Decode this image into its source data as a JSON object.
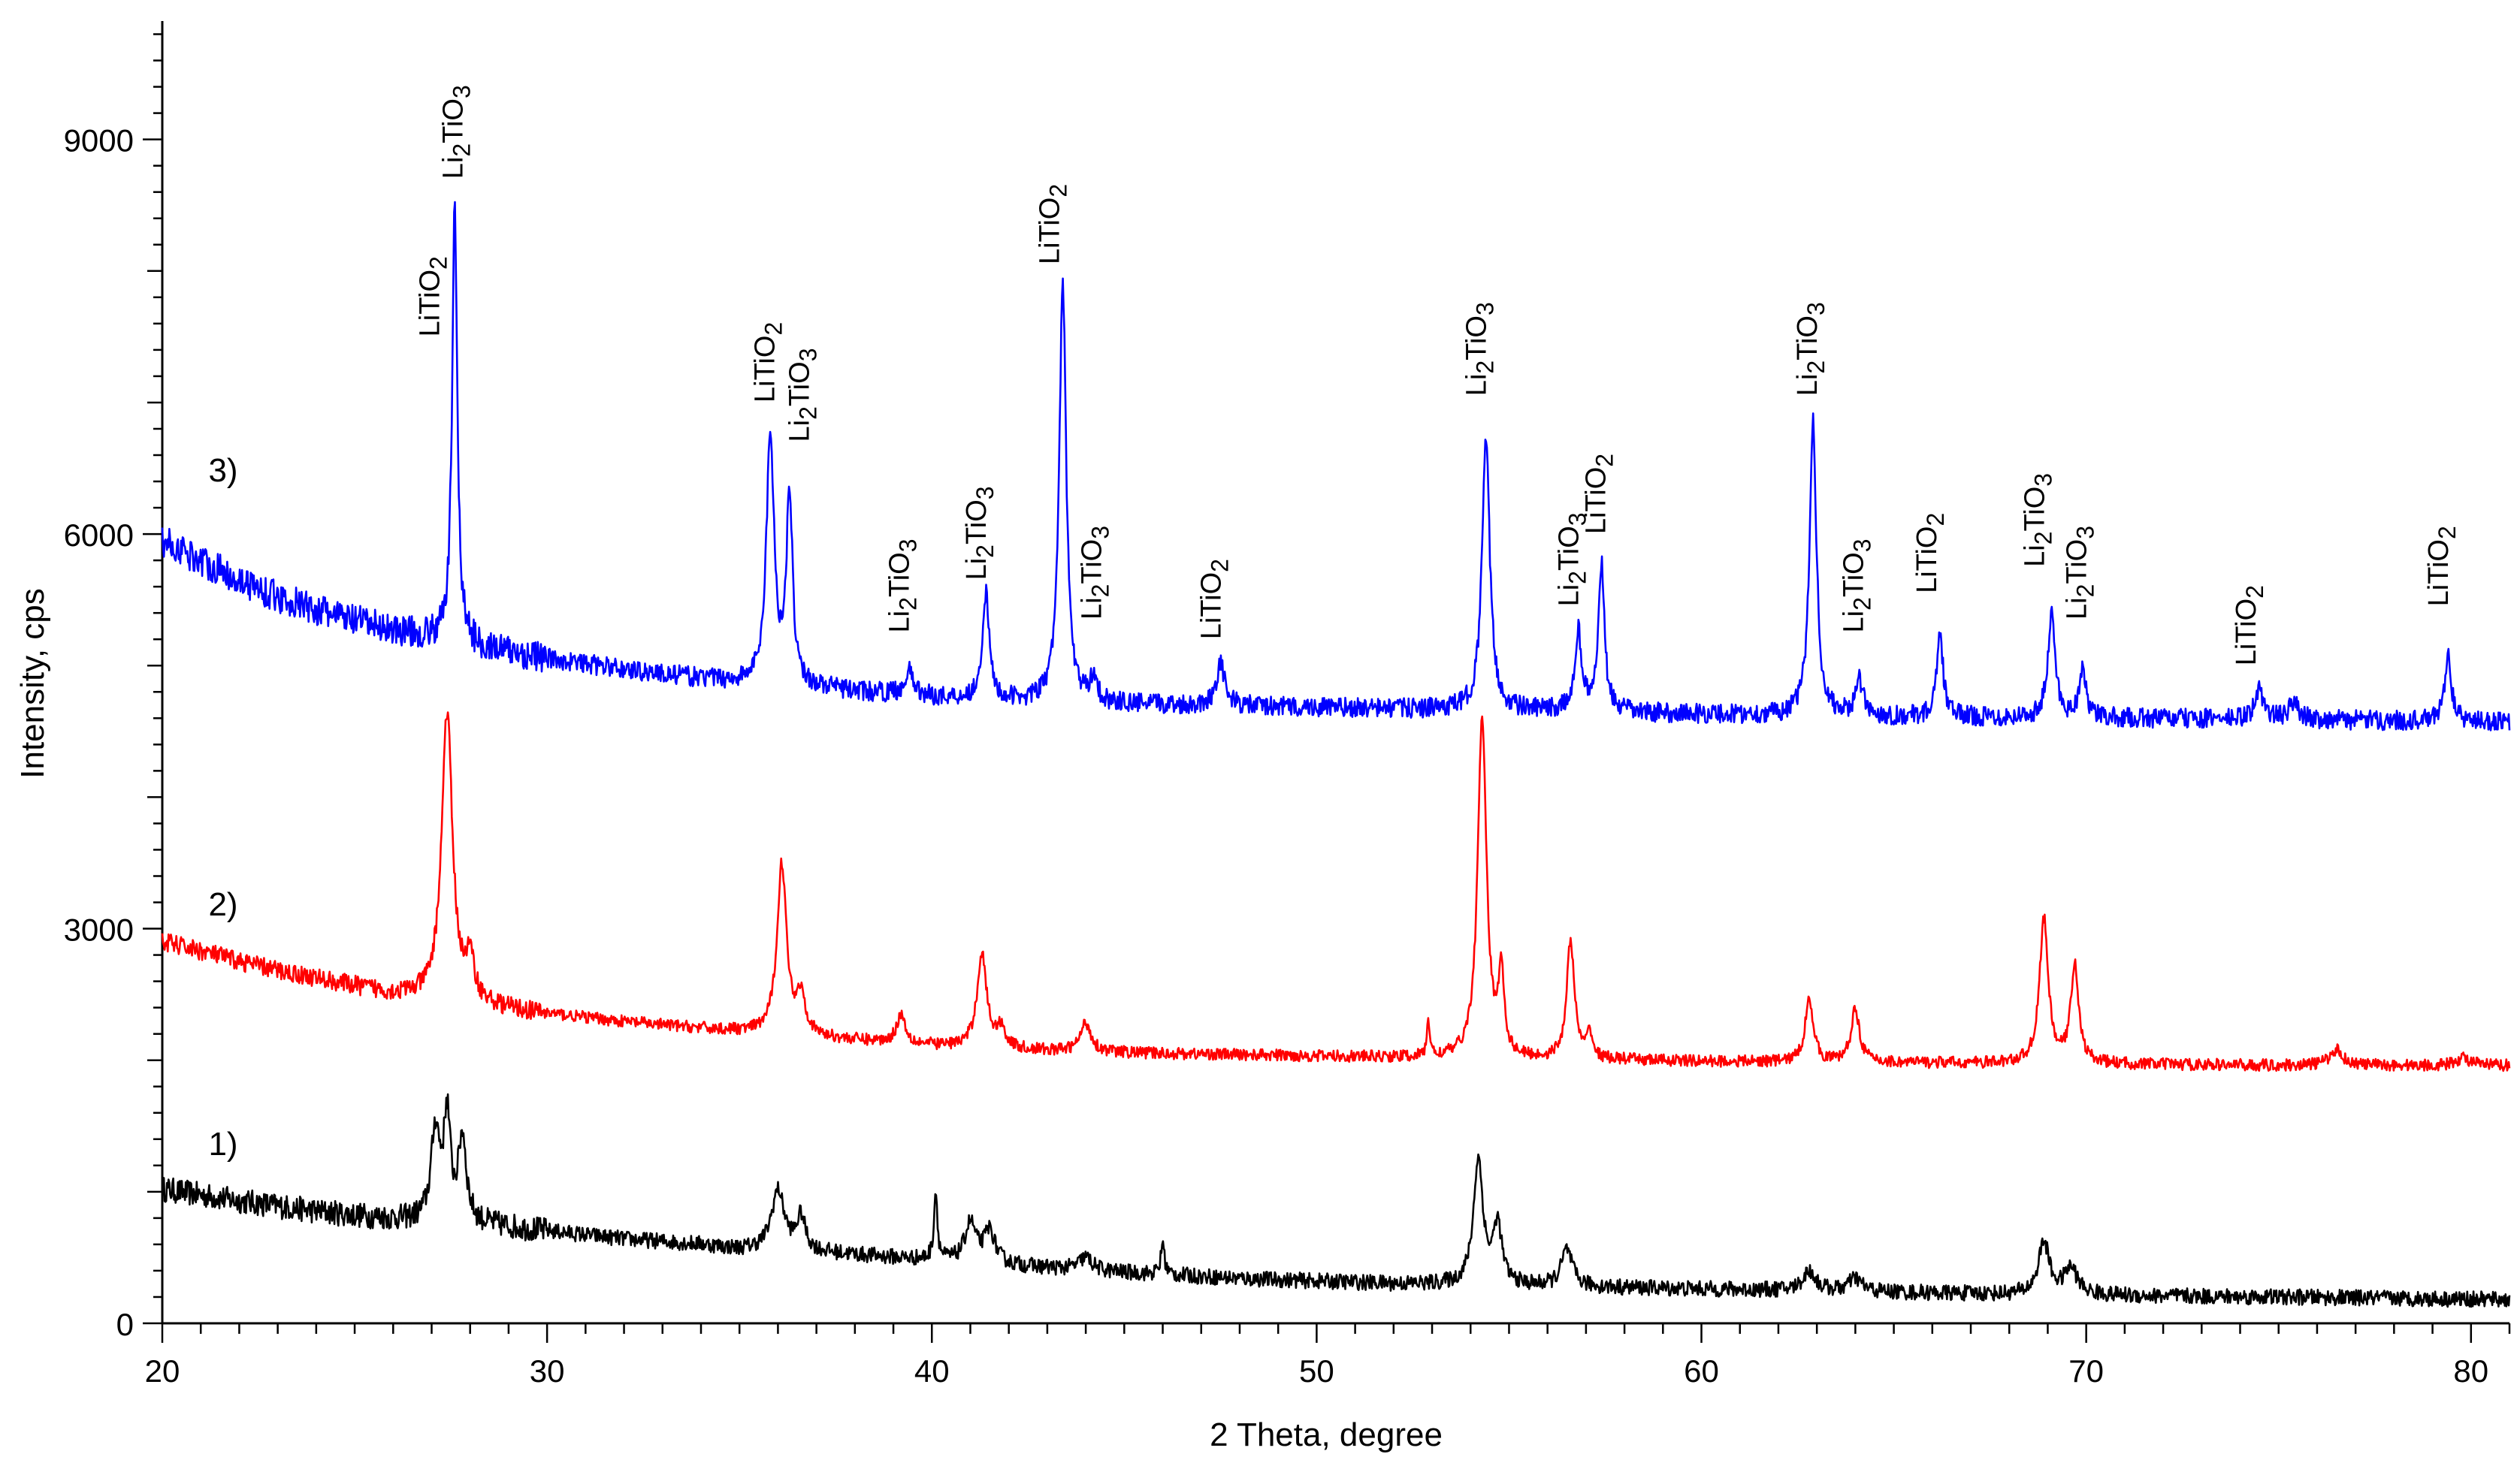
{
  "chart_data": {
    "type": "line",
    "xlabel": "2  Theta, degree",
    "ylabel": "Intensity, cps",
    "xlim": [
      20,
      81
    ],
    "ylim": [
      0,
      9900
    ],
    "xticks": [
      "20",
      "30",
      "40",
      "50",
      "60",
      "70",
      "80"
    ],
    "yticks": [
      "0",
      "3000",
      "6000",
      "9000"
    ],
    "grid": false,
    "legend": "none",
    "series": [
      {
        "name": "1)",
        "color": "#000000",
        "label_pos": [
          21.2,
          1280
        ],
        "baseline": [
          [
            20,
            1020
          ],
          [
            22,
            930
          ],
          [
            24,
            850
          ],
          [
            26,
            790
          ],
          [
            27,
            770
          ],
          [
            28,
            760
          ],
          [
            30,
            700
          ],
          [
            32,
            640
          ],
          [
            34,
            600
          ],
          [
            35,
            560
          ],
          [
            36,
            560
          ],
          [
            38,
            520
          ],
          [
            40,
            480
          ],
          [
            42,
            440
          ],
          [
            44,
            400
          ],
          [
            46,
            370
          ],
          [
            48,
            340
          ],
          [
            50,
            320
          ],
          [
            52,
            300
          ],
          [
            54,
            290
          ],
          [
            56,
            280
          ],
          [
            58,
            270
          ],
          [
            60,
            260
          ],
          [
            62,
            250
          ],
          [
            64,
            240
          ],
          [
            66,
            230
          ],
          [
            68,
            220
          ],
          [
            70,
            215
          ],
          [
            72,
            205
          ],
          [
            75,
            200
          ],
          [
            81,
            180
          ]
        ],
        "peaks": [
          [
            27.1,
            700,
            0.2
          ],
          [
            27.4,
            780,
            0.15
          ],
          [
            27.8,
            650,
            0.18
          ],
          [
            36.0,
            450,
            0.3
          ],
          [
            36.6,
            250,
            0.2
          ],
          [
            40.1,
            520,
            0.08
          ],
          [
            41.0,
            300,
            0.25
          ],
          [
            41.5,
            250,
            0.25
          ],
          [
            44.0,
            100,
            0.3
          ],
          [
            46.0,
            250,
            0.08
          ],
          [
            54.2,
            950,
            0.22
          ],
          [
            54.7,
            450,
            0.2
          ],
          [
            56.5,
            280,
            0.25
          ],
          [
            62.8,
            150,
            0.3
          ],
          [
            64.0,
            100,
            0.3
          ],
          [
            68.9,
            400,
            0.25
          ],
          [
            69.6,
            200,
            0.3
          ]
        ],
        "noise": 60
      },
      {
        "name": "2)",
        "color": "#ff0000",
        "label_pos": [
          21.2,
          3100
        ],
        "baseline": [
          [
            20,
            2900
          ],
          [
            21,
            2830
          ],
          [
            22,
            2750
          ],
          [
            23,
            2680
          ],
          [
            24,
            2620
          ],
          [
            25,
            2560
          ],
          [
            26,
            2500
          ],
          [
            27,
            2460
          ],
          [
            28,
            2420
          ],
          [
            30,
            2350
          ],
          [
            32,
            2290
          ],
          [
            34,
            2240
          ],
          [
            36,
            2190
          ],
          [
            38,
            2150
          ],
          [
            40,
            2110
          ],
          [
            42,
            2080
          ],
          [
            44,
            2060
          ],
          [
            46,
            2050
          ],
          [
            48,
            2040
          ],
          [
            50,
            2030
          ],
          [
            52,
            2020
          ],
          [
            54,
            2010
          ],
          [
            56,
            2000
          ],
          [
            58,
            2000
          ],
          [
            60,
            1990
          ],
          [
            65,
            1980
          ],
          [
            70,
            1970
          ],
          [
            75,
            1960
          ],
          [
            81,
            1960
          ]
        ],
        "peaks": [
          [
            27.4,
            2200,
            0.25
          ],
          [
            28.0,
            300,
            0.2
          ],
          [
            36.1,
            1300,
            0.22
          ],
          [
            36.6,
            300,
            0.2
          ],
          [
            39.2,
            220,
            0.2
          ],
          [
            41.3,
            720,
            0.22
          ],
          [
            41.8,
            150,
            0.2
          ],
          [
            44.0,
            220,
            0.25
          ],
          [
            52.9,
            300,
            0.06
          ],
          [
            54.3,
            2600,
            0.2
          ],
          [
            54.8,
            650,
            0.12
          ],
          [
            56.6,
            900,
            0.18
          ],
          [
            57.1,
            200,
            0.12
          ],
          [
            62.8,
            500,
            0.18
          ],
          [
            64.0,
            400,
            0.2
          ],
          [
            68.9,
            1100,
            0.2
          ],
          [
            69.7,
            750,
            0.18
          ],
          [
            76.5,
            120,
            0.3
          ],
          [
            79.8,
            60,
            0.3
          ]
        ],
        "noise": 45
      },
      {
        "name": "3)",
        "color": "#0000ff",
        "label_pos": [
          21.2,
          6400
        ],
        "baseline": [
          [
            20,
            5950
          ],
          [
            21,
            5800
          ],
          [
            22,
            5650
          ],
          [
            23,
            5520
          ],
          [
            24,
            5420
          ],
          [
            25,
            5340
          ],
          [
            26,
            5270
          ],
          [
            27,
            5210
          ],
          [
            28,
            5150
          ],
          [
            30,
            5050
          ],
          [
            32,
            4970
          ],
          [
            34,
            4900
          ],
          [
            35,
            4870
          ],
          [
            36,
            4850
          ],
          [
            37,
            4830
          ],
          [
            38,
            4800
          ],
          [
            40,
            4760
          ],
          [
            42,
            4730
          ],
          [
            44,
            4710
          ],
          [
            46,
            4700
          ],
          [
            48,
            4690
          ],
          [
            50,
            4680
          ],
          [
            52,
            4670
          ],
          [
            54,
            4660
          ],
          [
            56,
            4650
          ],
          [
            58,
            4640
          ],
          [
            60,
            4630
          ],
          [
            62,
            4620
          ],
          [
            65,
            4610
          ],
          [
            70,
            4600
          ],
          [
            75,
            4590
          ],
          [
            81,
            4570
          ]
        ],
        "peaks": [
          [
            27.6,
            3300,
            0.12
          ],
          [
            35.8,
            1900,
            0.18
          ],
          [
            36.3,
            1450,
            0.14
          ],
          [
            39.4,
            180,
            0.2
          ],
          [
            41.4,
            800,
            0.16
          ],
          [
            43.4,
            3200,
            0.16
          ],
          [
            44.2,
            200,
            0.15
          ],
          [
            47.5,
            320,
            0.2
          ],
          [
            54.4,
            2050,
            0.18
          ],
          [
            56.8,
            600,
            0.16
          ],
          [
            57.4,
            1120,
            0.14
          ],
          [
            62.9,
            2250,
            0.16
          ],
          [
            64.1,
            260,
            0.18
          ],
          [
            66.2,
            600,
            0.15
          ],
          [
            69.1,
            780,
            0.17
          ],
          [
            69.9,
            380,
            0.15
          ],
          [
            74.5,
            220,
            0.2
          ],
          [
            75.4,
            120,
            0.25
          ],
          [
            79.4,
            520,
            0.15
          ]
        ],
        "noise": 75
      }
    ],
    "peak_labels": [
      {
        "main": "LiTiO",
        "sub": "2",
        "x": 27.2,
        "y": 7500
      },
      {
        "main": "Li",
        "sub": "2",
        "tail": "TiO",
        "sub2": "3",
        "x": 27.8,
        "y": 8700
      },
      {
        "main": "LiTiO",
        "sub": "2",
        "x": 35.9,
        "y": 7000
      },
      {
        "main": "Li",
        "sub": "2",
        "tail": "TiO",
        "sub2": "3",
        "x": 36.8,
        "y": 6700
      },
      {
        "main": "Li",
        "sub": "2",
        "tail": "TiO",
        "sub2": "3",
        "x": 39.4,
        "y": 5250
      },
      {
        "main": "Li",
        "sub": "2",
        "tail": "TiO",
        "sub2": "3",
        "x": 41.4,
        "y": 5650
      },
      {
        "main": "LiTiO",
        "sub": "2",
        "x": 43.3,
        "y": 8050
      },
      {
        "main": "Li",
        "sub": "2",
        "tail": "TiO",
        "sub2": "3",
        "x": 44.4,
        "y": 5350
      },
      {
        "main": "LiTiO",
        "sub": "2",
        "x": 47.5,
        "y": 5200
      },
      {
        "main": "Li",
        "sub": "2",
        "tail": "TiO",
        "sub2": "3",
        "x": 54.4,
        "y": 7050
      },
      {
        "main": "Li",
        "sub": "2",
        "tail": "TiO",
        "sub2": "3",
        "x": 56.8,
        "y": 5450
      },
      {
        "main": "LiTiO",
        "sub": "2",
        "x": 57.5,
        "y": 6000
      },
      {
        "main": "Li",
        "sub": "2",
        "tail": "TiO",
        "sub2": "3",
        "x": 63.0,
        "y": 7050
      },
      {
        "main": "Li",
        "sub": "2",
        "tail": "TiO",
        "sub2": "3",
        "x": 64.2,
        "y": 5250
      },
      {
        "main": "LiTiO",
        "sub": "2",
        "x": 66.1,
        "y": 5550
      },
      {
        "main": "Li",
        "sub": "2",
        "tail": "TiO",
        "sub2": "3",
        "x": 68.9,
        "y": 5750
      },
      {
        "main": "Li",
        "sub": "2",
        "tail": "TiO",
        "sub2": "3",
        "x": 70.0,
        "y": 5350
      },
      {
        "main": "LiTiO",
        "sub": "2",
        "x": 74.4,
        "y": 5000
      },
      {
        "main": "LiTiO",
        "sub": "2",
        "x": 79.4,
        "y": 5450
      }
    ]
  }
}
